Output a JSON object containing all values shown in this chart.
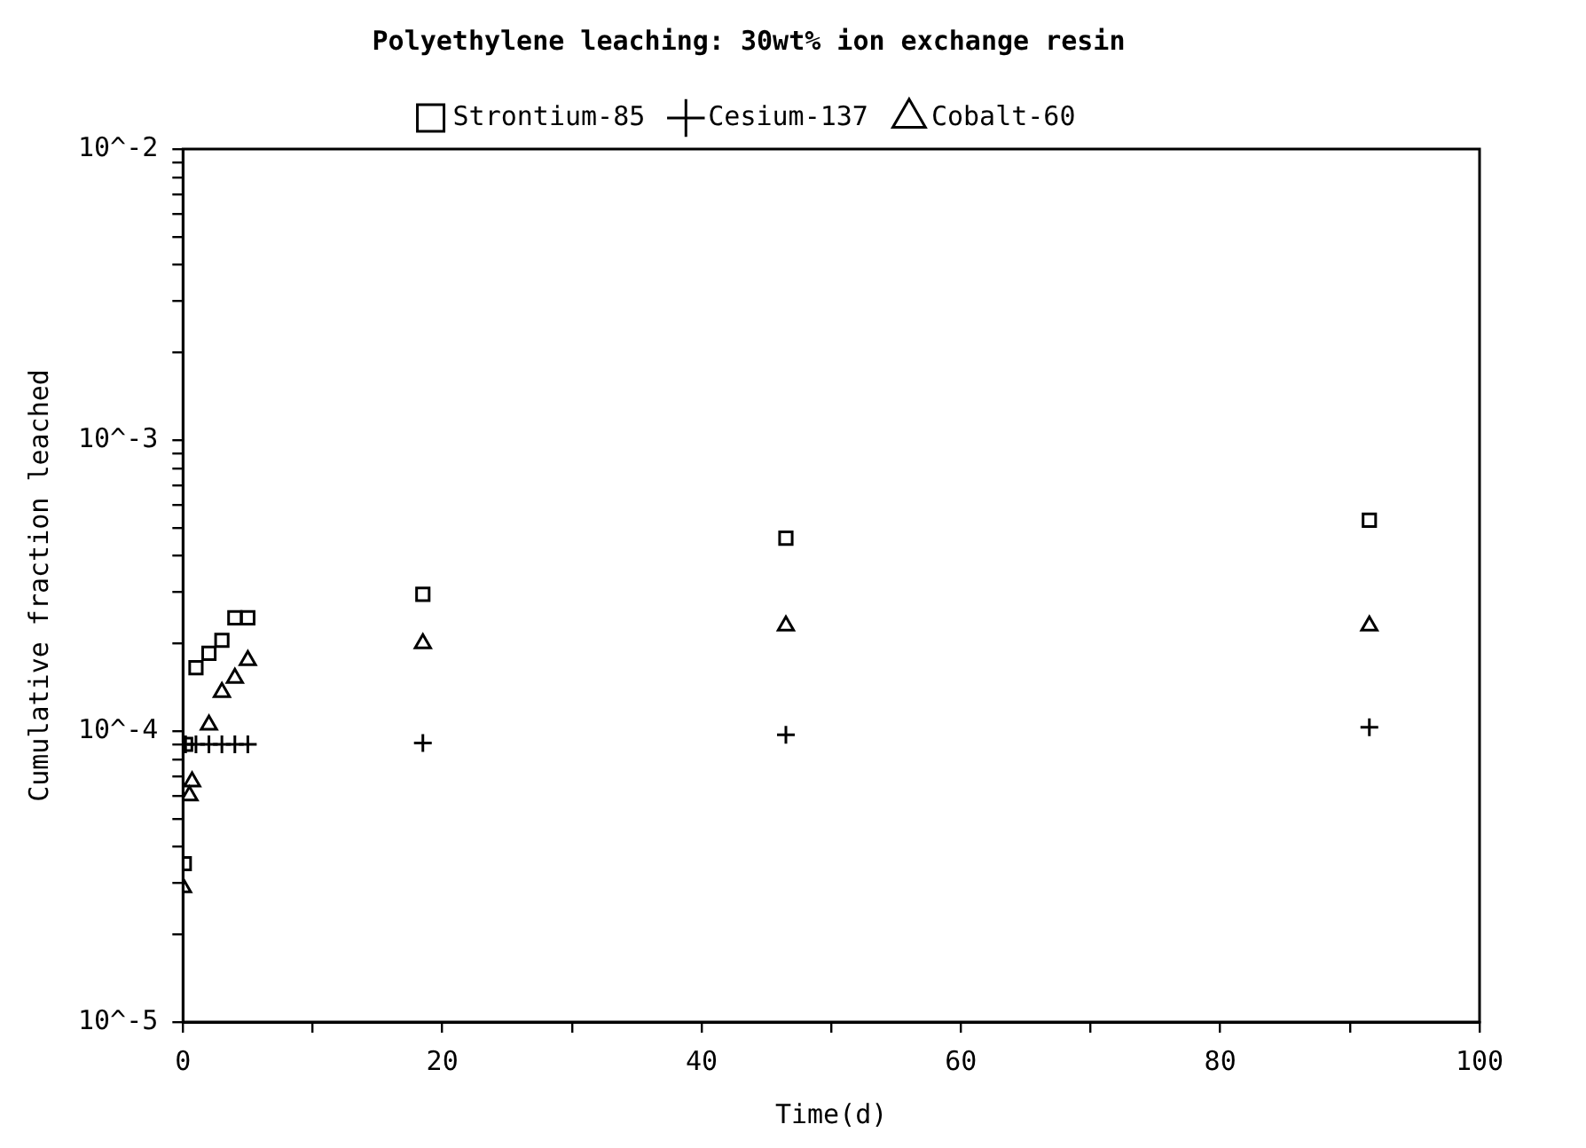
{
  "chart_data": {
    "type": "scatter",
    "title": "Polyethylene leaching: 30wt% ion exchange resin",
    "xlabel": "Time(d)",
    "ylabel": "Cumulative fraction leached",
    "series": [
      {
        "name": "Strontium-85",
        "color": "#000000",
        "marker": "square",
        "x": [
          0.1,
          0.2,
          1,
          2,
          3,
          4,
          5,
          18.5,
          46.5,
          91.5
        ],
        "values": [
          3.5e-05,
          9e-05,
          0.000165,
          0.000185,
          0.000205,
          0.000245,
          0.000245,
          0.000295,
          0.00046,
          0.00053
        ]
      },
      {
        "name": "Cesium-137",
        "color": "#000000",
        "marker": "cross",
        "x": [
          0.2,
          1,
          2,
          3,
          4,
          5,
          18.5,
          46.5,
          91.5
        ],
        "values": [
          9e-05,
          9e-05,
          9e-05,
          9e-05,
          9e-05,
          9e-05,
          9.1e-05,
          9.7e-05,
          0.000103
        ]
      },
      {
        "name": "Cobalt-60",
        "color": "#000000",
        "marker": "triangle",
        "x": [
          0,
          0.5,
          0.7,
          2,
          3,
          4,
          5,
          18.5,
          46.5,
          91.5
        ],
        "values": [
          2.9e-05,
          6e-05,
          6.7e-05,
          0.000105,
          0.000136,
          0.000152,
          0.000175,
          0.0002,
          0.00023,
          0.00023
        ]
      }
    ],
    "xlim": [
      0,
      100
    ],
    "xticks": [
      0,
      {
        "value": 10,
        "label": null
      },
      20,
      {
        "value": 30,
        "label": null
      },
      40,
      {
        "value": 50,
        "label": null
      },
      60,
      {
        "value": 70,
        "label": null
      },
      80,
      {
        "value": 90,
        "label": null
      },
      100
    ],
    "ylim": [
      1e-05,
      0.01
    ],
    "log": "y",
    "yticks": [
      {
        "value": 1e-05,
        "label": "10^-5"
      },
      {
        "value": 2e-05,
        "label": null
      },
      {
        "value": 3e-05,
        "label": null
      },
      {
        "value": 4e-05,
        "label": null
      },
      {
        "value": 5e-05,
        "label": null
      },
      {
        "value": 6e-05,
        "label": null
      },
      {
        "value": 7e-05,
        "label": null
      },
      {
        "value": 8e-05,
        "label": null
      },
      {
        "value": 9e-05,
        "label": null
      },
      {
        "value": 0.0001,
        "label": "10^-4"
      },
      {
        "value": 0.0002,
        "label": null
      },
      {
        "value": 0.0003,
        "label": null
      },
      {
        "value": 0.0004,
        "label": null
      },
      {
        "value": 0.0005,
        "label": null
      },
      {
        "value": 0.0006,
        "label": null
      },
      {
        "value": 0.0007,
        "label": null
      },
      {
        "value": 0.0008,
        "label": null
      },
      {
        "value": 0.0009,
        "label": null
      },
      {
        "value": 0.001,
        "label": "10^-3"
      },
      {
        "value": 0.002,
        "label": null
      },
      {
        "value": 0.003,
        "label": null
      },
      {
        "value": 0.004,
        "label": null
      },
      {
        "value": 0.005,
        "label": null
      },
      {
        "value": 0.006,
        "label": null
      },
      {
        "value": 0.007,
        "label": null
      },
      {
        "value": 0.008,
        "label": null
      },
      {
        "value": 0.009,
        "label": null
      },
      {
        "value": 0.01,
        "label": "10^-2"
      }
    ],
    "grid": false,
    "legend": "top"
  }
}
